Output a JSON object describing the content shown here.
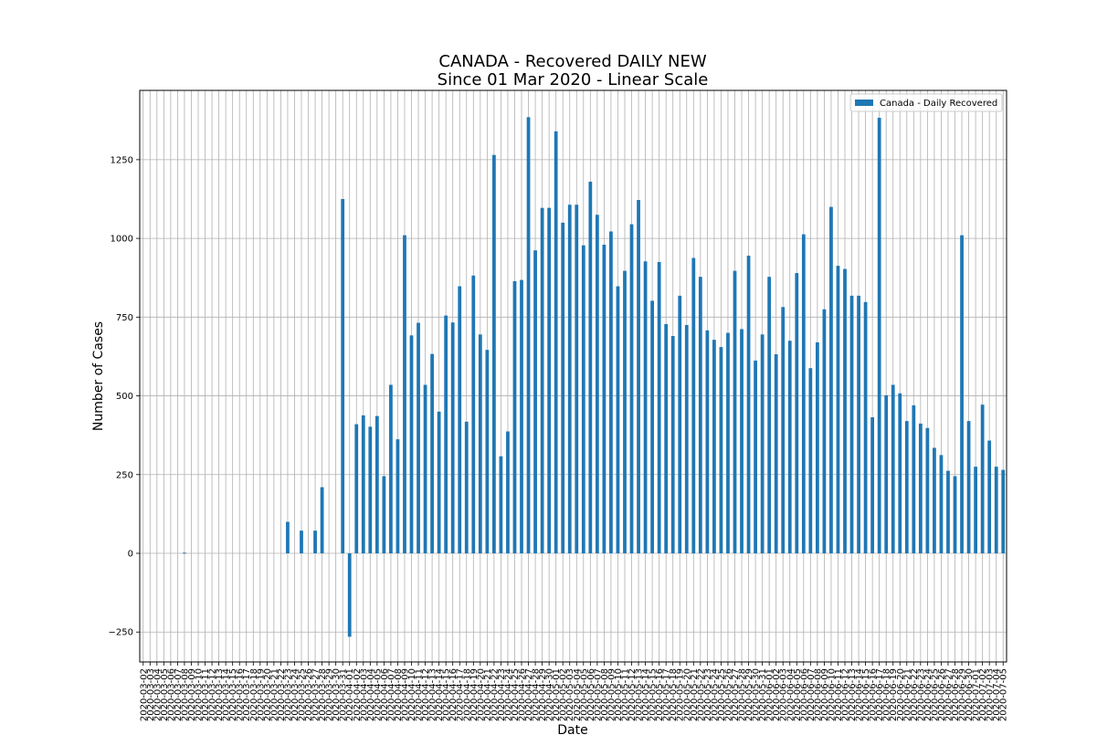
{
  "chart_data": {
    "type": "bar",
    "title": "CANADA - Recovered DAILY NEW",
    "subtitle": "Since 01 Mar 2020 - Linear Scale",
    "xlabel": "Date",
    "ylabel": "Number of Cases",
    "ylim": [
      -345,
      1470
    ],
    "yticks": [
      -250,
      0,
      250,
      500,
      750,
      1000,
      1250
    ],
    "ytick_labels": [
      "−250",
      "0",
      "250",
      "500",
      "750",
      "1000",
      "1250"
    ],
    "grid": true,
    "legend_position": "top-right",
    "bar_color": "#1f77b4",
    "series": [
      {
        "name": "Canada - Daily Recovered",
        "values": [
          0,
          0,
          0,
          0,
          0,
          0,
          2,
          0,
          0,
          0,
          0,
          0,
          0,
          0,
          0,
          0,
          0,
          0,
          0,
          0,
          0,
          100,
          0,
          72,
          0,
          72,
          210,
          0,
          0,
          1125,
          -265,
          410,
          438,
          402,
          436,
          245,
          535,
          362,
          1010,
          692,
          732,
          535,
          633,
          450,
          755,
          733,
          848,
          418,
          882,
          695,
          646,
          1265,
          308,
          387,
          864,
          868,
          1385,
          962,
          1097,
          1097,
          1340,
          1050,
          1107,
          1107,
          978,
          1180,
          1075,
          980,
          1022,
          848,
          897,
          1045,
          1122,
          927,
          802,
          925,
          728,
          690,
          818,
          725,
          938,
          878,
          708,
          678,
          655,
          700,
          897,
          712,
          945,
          612,
          695,
          878,
          632,
          782,
          675,
          890,
          1013,
          588,
          670,
          775,
          1100,
          913,
          903,
          818,
          818,
          798,
          432,
          1383,
          502,
          535,
          508,
          420,
          470,
          412,
          398,
          335,
          312,
          262,
          245,
          1010,
          420,
          275,
          472,
          358,
          275,
          265
        ]
      }
    ],
    "categories": [
      "2020-03-02",
      "2020-03-03",
      "2020-03-04",
      "2020-03-05",
      "2020-03-06",
      "2020-03-07",
      "2020-03-08",
      "2020-03-09",
      "2020-03-10",
      "2020-03-11",
      "2020-03-12",
      "2020-03-13",
      "2020-03-14",
      "2020-03-15",
      "2020-03-16",
      "2020-03-17",
      "2020-03-18",
      "2020-03-19",
      "2020-03-20",
      "2020-03-21",
      "2020-03-22",
      "2020-03-23",
      "2020-03-24",
      "2020-03-25",
      "2020-03-26",
      "2020-03-27",
      "2020-03-28",
      "2020-03-29",
      "2020-03-30",
      "2020-03-31",
      "2020-04-01",
      "2020-04-02",
      "2020-04-03",
      "2020-04-04",
      "2020-04-05",
      "2020-04-06",
      "2020-04-07",
      "2020-04-08",
      "2020-04-09",
      "2020-04-10",
      "2020-04-11",
      "2020-04-12",
      "2020-04-13",
      "2020-04-14",
      "2020-04-15",
      "2020-04-16",
      "2020-04-17",
      "2020-04-18",
      "2020-04-19",
      "2020-04-20",
      "2020-04-21",
      "2020-04-22",
      "2020-04-23",
      "2020-04-24",
      "2020-04-25",
      "2020-04-26",
      "2020-04-27",
      "2020-04-28",
      "2020-04-29",
      "2020-04-30",
      "2020-05-01",
      "2020-05-02",
      "2020-05-03",
      "2020-05-04",
      "2020-05-05",
      "2020-05-06",
      "2020-05-07",
      "2020-05-08",
      "2020-05-09",
      "2020-05-10",
      "2020-05-11",
      "2020-05-12",
      "2020-05-13",
      "2020-05-14",
      "2020-05-15",
      "2020-05-16",
      "2020-05-17",
      "2020-05-18",
      "2020-05-19",
      "2020-05-20",
      "2020-05-21",
      "2020-05-22",
      "2020-05-23",
      "2020-05-24",
      "2020-05-25",
      "2020-05-26",
      "2020-05-27",
      "2020-05-28",
      "2020-05-29",
      "2020-05-30",
      "2020-05-31",
      "2020-06-01",
      "2020-06-02",
      "2020-06-03",
      "2020-06-04",
      "2020-06-05",
      "2020-06-06",
      "2020-06-07",
      "2020-06-08",
      "2020-06-09",
      "2020-06-10",
      "2020-06-11",
      "2020-06-12",
      "2020-06-13",
      "2020-06-14",
      "2020-06-15",
      "2020-06-16",
      "2020-06-17",
      "2020-06-18",
      "2020-06-19",
      "2020-06-20",
      "2020-06-21",
      "2020-06-22",
      "2020-06-23",
      "2020-06-24",
      "2020-06-25",
      "2020-06-26",
      "2020-06-27",
      "2020-06-28",
      "2020-06-29",
      "2020-06-30",
      "2020-07-01",
      "2020-07-02",
      "2020-07-03",
      "2020-07-04",
      "2020-07-05"
    ]
  }
}
